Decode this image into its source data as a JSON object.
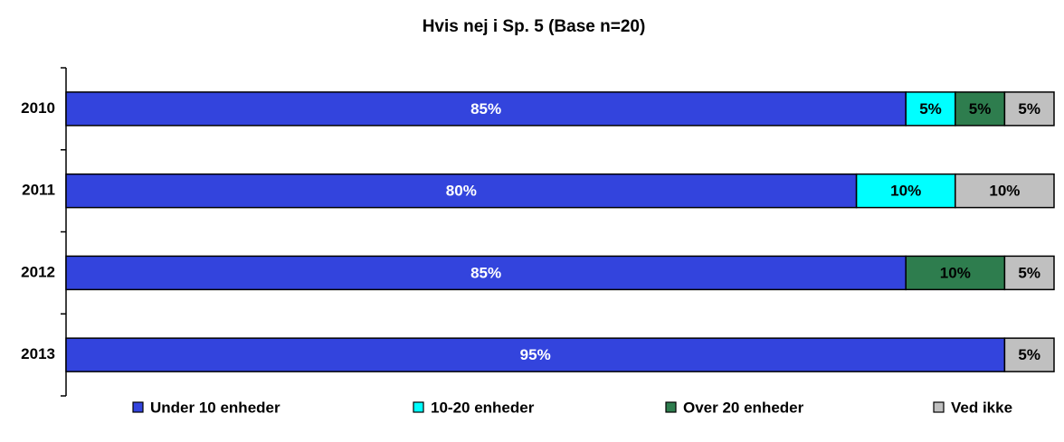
{
  "chart_data": {
    "type": "stacked_bar_horizontal",
    "title": "Hvis nej i Sp. 5 (Base n=20)",
    "categories": [
      "2010",
      "2011",
      "2012",
      "2013"
    ],
    "xlim": [
      0,
      100
    ],
    "series": [
      {
        "name": "Under 10 enheder",
        "color": "#3344dd",
        "label_color": "#ffffff",
        "values": [
          85,
          80,
          85,
          95
        ],
        "value_labels": [
          "85%",
          "80%",
          "85%",
          "95%"
        ]
      },
      {
        "name": "10-20 enheder",
        "color": "#00ffff",
        "label_color": "#000000",
        "values": [
          5,
          10,
          0,
          0
        ],
        "value_labels": [
          "5%",
          "10%",
          null,
          null
        ]
      },
      {
        "name": "Over 20 enheder",
        "color": "#2e7d4e",
        "label_color": "#000000",
        "values": [
          5,
          0,
          10,
          0
        ],
        "value_labels": [
          "5%",
          null,
          "10%",
          null
        ]
      },
      {
        "name": "Ved ikke",
        "color": "#c0c0c0",
        "label_color": "#000000",
        "values": [
          5,
          10,
          5,
          5
        ],
        "value_labels": [
          "5%",
          "10%",
          "5%",
          "5%"
        ]
      }
    ],
    "legend": "bottom"
  }
}
